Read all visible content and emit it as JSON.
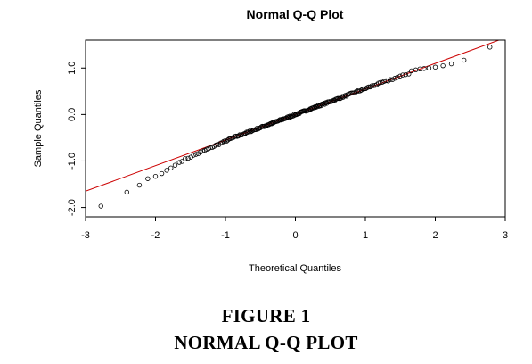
{
  "chart_data": {
    "type": "scatter",
    "title": "Normal Q-Q Plot",
    "xlabel": "Theoretical Quantiles",
    "ylabel": "Sample Quantiles",
    "xlim": [
      -3,
      3
    ],
    "ylim": [
      -2.2,
      1.6
    ],
    "x_ticks": [
      -3,
      -2,
      -1,
      0,
      1,
      2,
      3
    ],
    "y_ticks": [
      -2.0,
      -1.0,
      0.0,
      1.0
    ],
    "x_tick_labels": [
      "-3",
      "-2",
      "-1",
      "0",
      "1",
      "2",
      "3"
    ],
    "y_tick_labels": [
      "-2.0",
      "-1.0",
      "0.0",
      "1.0"
    ],
    "grid": false,
    "marker": "open circle",
    "point_color": "#000000",
    "reference_line": {
      "intercept": 0.0,
      "slope": 0.55,
      "color": "#cc0000"
    },
    "n_points": 200,
    "points_x_note": "theoretical normal quantiles of n_points",
    "points_tail_pairs": [
      [
        -2.78,
        -1.97
      ],
      [
        -2.41,
        -1.67
      ],
      [
        -2.23,
        -1.52
      ],
      [
        -2.11,
        -1.38
      ],
      [
        -2.0,
        -1.33
      ],
      [
        -1.91,
        -1.27
      ],
      [
        -1.84,
        -1.2
      ],
      [
        -1.78,
        -1.15
      ],
      [
        -1.72,
        -1.09
      ],
      [
        -1.66,
        -1.03
      ],
      [
        1.66,
        0.94
      ],
      [
        1.72,
        0.96
      ],
      [
        1.78,
        0.98
      ],
      [
        1.84,
        0.99
      ],
      [
        1.91,
        1.0
      ],
      [
        2.0,
        1.02
      ],
      [
        2.11,
        1.05
      ],
      [
        2.23,
        1.09
      ],
      [
        2.41,
        1.17
      ],
      [
        2.78,
        1.45
      ]
    ],
    "slope_bulk": 0.56
  },
  "caption": {
    "line1": "FIGURE 1",
    "line2": "NORMAL Q-Q PLOT"
  }
}
